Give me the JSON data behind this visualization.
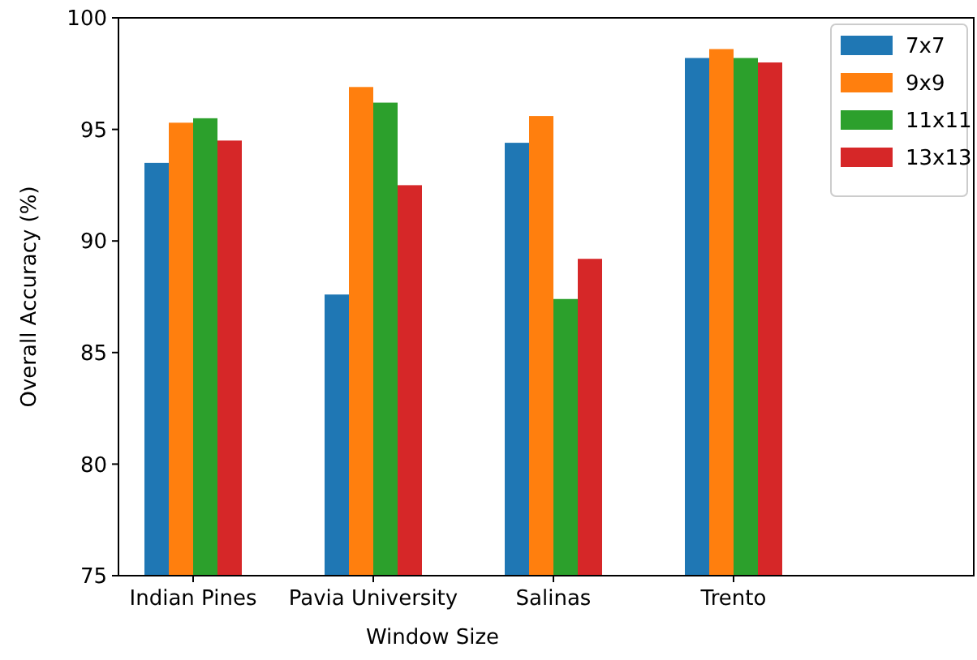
{
  "chart_data": {
    "type": "bar",
    "xlabel": "Window Size",
    "ylabel": "Overall Accuracy (%)",
    "categories": [
      "Indian Pines",
      "Pavia University",
      "Salinas",
      "Trento"
    ],
    "series": [
      {
        "name": "7x7",
        "color": "#1f77b4",
        "values": [
          93.5,
          87.6,
          94.4,
          98.2
        ]
      },
      {
        "name": "9x9",
        "color": "#ff7f0e",
        "values": [
          95.3,
          96.9,
          95.6,
          98.6
        ]
      },
      {
        "name": "11x11",
        "color": "#2ca02c",
        "values": [
          95.5,
          96.2,
          87.4,
          98.2
        ]
      },
      {
        "name": "13x13",
        "color": "#d62728",
        "values": [
          94.5,
          92.5,
          89.2,
          98.0
        ]
      }
    ],
    "ylim": [
      75,
      100
    ],
    "yticks": [
      75,
      80,
      85,
      90,
      95,
      100
    ],
    "grid": false,
    "legend": "top right"
  }
}
